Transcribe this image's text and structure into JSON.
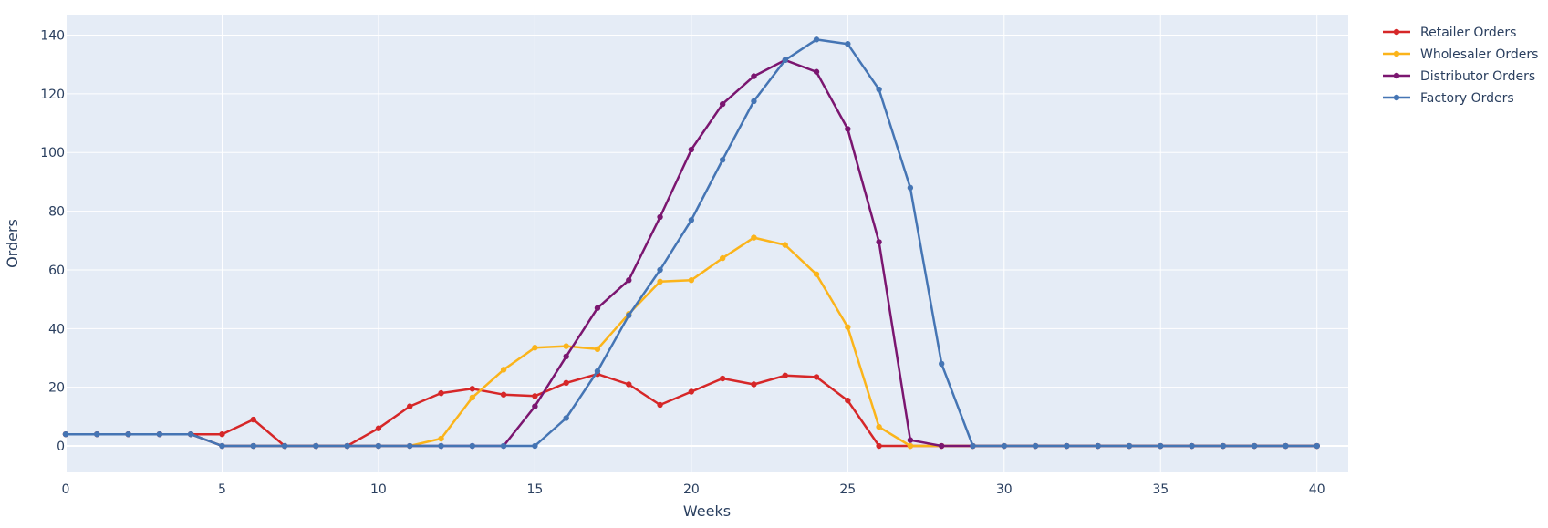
{
  "chart_data": {
    "type": "line",
    "title": "",
    "xlabel": "Weeks",
    "ylabel": "Orders",
    "xlim": [
      0,
      41
    ],
    "ylim": [
      -9,
      147
    ],
    "xticks": [
      0,
      5,
      10,
      15,
      20,
      25,
      30,
      35,
      40
    ],
    "yticks": [
      0,
      20,
      40,
      60,
      80,
      100,
      120,
      140
    ],
    "grid": true,
    "legend_position": "top-right",
    "background_color": "#e5ecf6",
    "x": [
      0,
      1,
      2,
      3,
      4,
      5,
      6,
      7,
      8,
      9,
      10,
      11,
      12,
      13,
      14,
      15,
      16,
      17,
      18,
      19,
      20,
      21,
      22,
      23,
      24,
      25,
      26,
      27,
      28,
      29,
      30,
      31,
      32,
      33,
      34,
      35,
      36,
      37,
      38,
      39,
      40
    ],
    "series": [
      {
        "name": "Retailer Orders",
        "color": "#d62728",
        "values": [
          4,
          4,
          4,
          4,
          4,
          4,
          9,
          0,
          0,
          0,
          6,
          13.5,
          18,
          19.5,
          17.5,
          17,
          21.5,
          24.5,
          21,
          14,
          18.5,
          23,
          21,
          24,
          23.5,
          15.5,
          0,
          0,
          0,
          0,
          0,
          0,
          0,
          0,
          0,
          0,
          0,
          0,
          0,
          0,
          0
        ]
      },
      {
        "name": "Wholesaler Orders",
        "color": "#fbb41a",
        "values": [
          4,
          4,
          4,
          4,
          4,
          0,
          0,
          0,
          0,
          0,
          0,
          0,
          2.5,
          16.5,
          26,
          33.5,
          34,
          33,
          45,
          56,
          56.5,
          64,
          71,
          68.5,
          58.5,
          40.5,
          6.5,
          0,
          0,
          0,
          0,
          0,
          0,
          0,
          0,
          0,
          0,
          0,
          0,
          0,
          0
        ]
      },
      {
        "name": "Distributor Orders",
        "color": "#7b1670",
        "values": [
          4,
          4,
          4,
          4,
          4,
          0,
          0,
          0,
          0,
          0,
          0,
          0,
          0,
          0,
          0,
          13.5,
          30.5,
          47,
          56.5,
          78,
          101,
          116.5,
          126,
          131.5,
          127.5,
          108,
          69.5,
          2,
          0,
          0,
          0,
          0,
          0,
          0,
          0,
          0,
          0,
          0,
          0,
          0,
          0
        ]
      },
      {
        "name": "Factory Orders",
        "color": "#4575b4",
        "values": [
          4,
          4,
          4,
          4,
          4,
          0,
          0,
          0,
          0,
          0,
          0,
          0,
          0,
          0,
          0,
          0,
          9.5,
          25.5,
          44.5,
          60,
          77,
          97.5,
          117.5,
          131.5,
          138.5,
          137,
          121.5,
          88,
          28,
          0,
          0,
          0,
          0,
          0,
          0,
          0,
          0,
          0,
          0,
          0,
          0
        ]
      }
    ]
  }
}
